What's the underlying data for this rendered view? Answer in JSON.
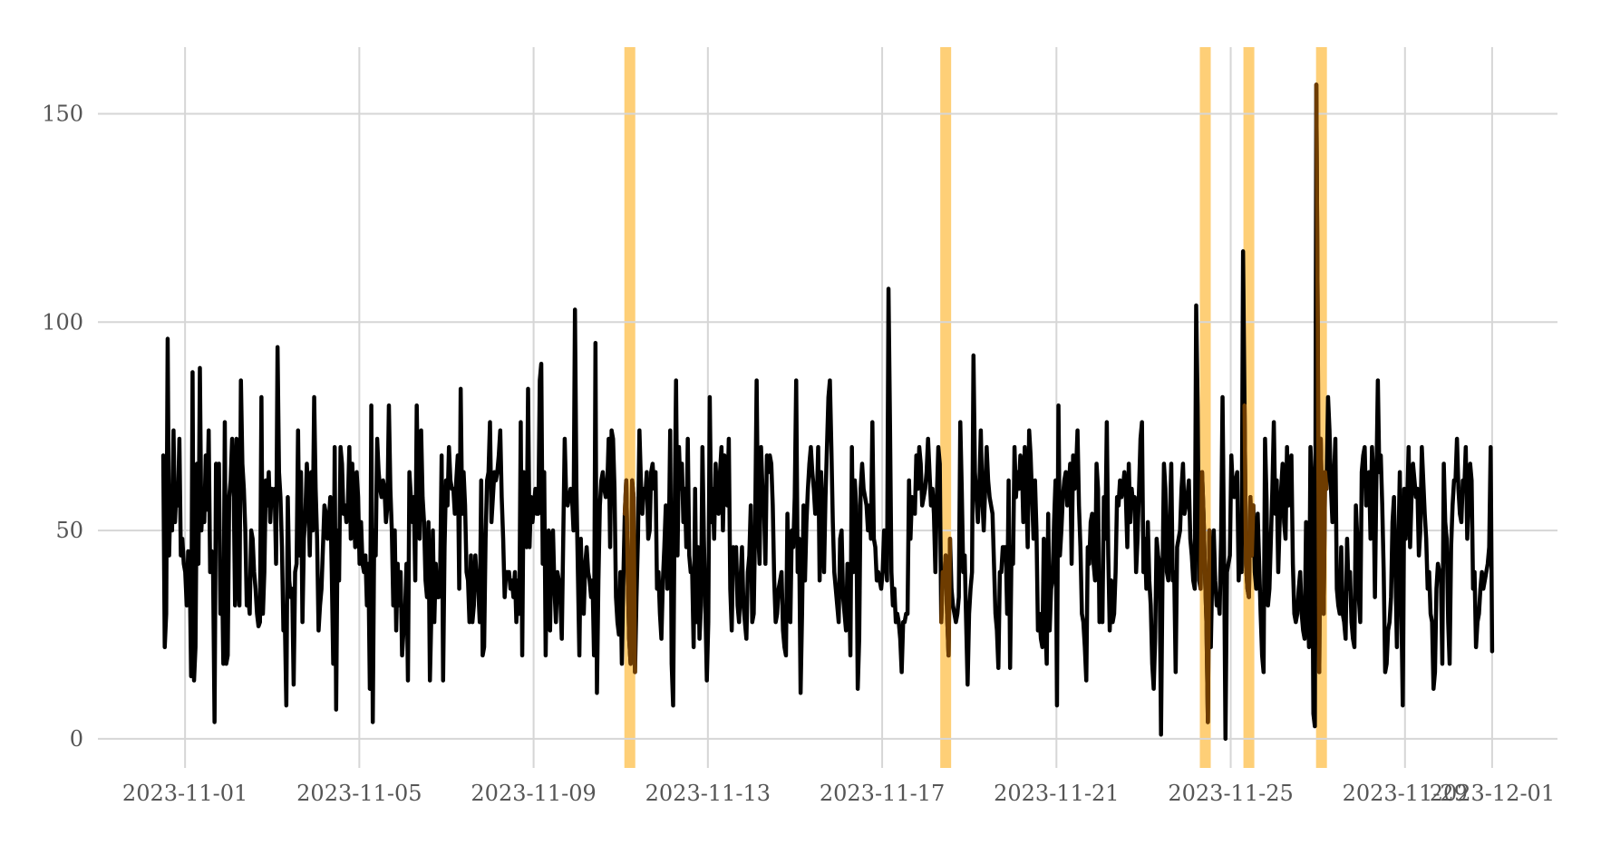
{
  "chart_data": {
    "type": "line",
    "title": "",
    "xlabel": "",
    "ylabel": "",
    "x_axis": {
      "type": "date",
      "start": "2023-10-31T12:00",
      "end": "2023-12-01T00:00",
      "range": [
        "2023-10-30T00:00",
        "2023-12-02T12:00"
      ],
      "ticks": [
        "2023-11-01",
        "2023-11-05",
        "2023-11-09",
        "2023-11-13",
        "2023-11-17",
        "2023-11-21",
        "2023-11-25",
        "2023-11-29",
        "2023-12-01"
      ]
    },
    "y_axis": {
      "range": [
        -7,
        166
      ],
      "ticks": [
        0,
        50,
        100,
        150
      ]
    },
    "grid": true,
    "line_color": "#000000",
    "highlight_color": "#fdbf4a",
    "spike_color": "#7a4300",
    "series": [
      {
        "values": [
          68,
          22,
          30,
          96,
          44,
          60,
          50,
          74,
          52,
          60,
          56,
          72,
          44,
          48,
          42,
          40,
          32,
          45,
          42,
          15,
          88,
          14,
          22,
          66,
          42,
          89,
          50,
          58,
          52,
          68,
          55,
          74,
          40,
          45,
          40,
          4,
          66,
          55,
          66,
          30,
          42,
          18,
          76,
          18,
          20,
          58,
          62,
          72,
          62,
          32,
          72,
          40,
          32,
          86,
          66,
          60,
          50,
          32,
          34,
          30,
          50,
          48,
          40,
          36,
          30,
          27,
          28,
          82,
          30,
          40,
          62,
          56,
          64,
          52,
          60,
          58,
          60,
          42,
          94,
          64,
          58,
          46,
          26,
          28,
          8,
          58,
          38,
          34,
          36,
          13,
          40,
          42,
          74,
          44,
          64,
          28,
          48,
          54,
          66,
          58,
          44,
          64,
          50,
          82,
          60,
          48,
          26,
          32,
          36,
          46,
          56,
          54,
          48,
          52,
          58,
          40,
          18,
          70,
          7,
          50,
          38,
          70,
          66,
          54,
          56,
          52,
          56,
          70,
          48,
          66,
          56,
          46,
          64,
          58,
          42,
          52,
          42,
          40,
          44,
          32,
          42,
          12,
          80,
          4,
          50,
          44,
          72,
          64,
          60,
          58,
          62,
          60,
          52,
          56,
          80,
          60,
          50,
          32,
          50,
          26,
          42,
          32,
          40,
          20,
          26,
          30,
          42,
          14,
          64,
          58,
          52,
          58,
          38,
          80,
          56,
          48,
          74,
          58,
          52,
          38,
          34,
          52,
          14,
          30,
          50,
          28,
          42,
          34,
          34,
          40,
          68,
          14,
          46,
          62,
          56,
          70,
          62,
          60,
          60,
          54,
          62,
          68,
          36,
          84,
          54,
          64,
          56,
          40,
          38,
          28,
          44,
          28,
          32,
          44,
          38,
          36,
          28,
          62,
          20,
          22,
          48,
          62,
          64,
          76,
          52,
          58,
          64,
          62,
          64,
          68,
          74,
          58,
          48,
          34,
          40,
          40,
          40,
          36,
          38,
          34,
          40,
          28,
          38,
          30,
          76,
          20,
          64,
          60,
          46,
          84,
          46,
          58,
          52,
          56,
          60,
          54,
          54,
          86,
          90,
          42,
          64,
          20,
          48,
          50,
          26,
          48,
          50,
          36,
          28,
          40,
          38,
          34,
          24,
          48,
          72,
          58,
          56,
          58,
          60,
          58,
          50,
          103,
          60,
          40,
          20,
          48,
          34,
          30,
          42,
          46,
          40,
          38,
          34,
          38,
          20,
          95,
          11,
          38,
          56,
          62,
          64,
          60,
          58,
          60,
          72,
          46,
          74,
          72,
          60,
          34,
          28,
          25,
          40,
          18,
          38,
          54,
          62,
          40,
          24,
          18,
          62,
          58,
          16,
          34,
          48,
          74,
          62,
          54,
          60,
          58,
          64,
          48,
          50,
          64,
          66,
          60,
          64,
          36,
          40,
          30,
          24,
          38,
          46,
          56,
          36,
          46,
          74,
          18,
          8,
          54,
          86,
          44,
          70,
          60,
          66,
          52,
          60,
          46,
          72,
          44,
          40,
          40,
          22,
          60,
          28,
          46,
          24,
          32,
          70,
          48,
          32,
          14,
          28,
          82,
          52,
          60,
          48,
          66,
          58,
          54,
          64,
          70,
          50,
          68,
          66,
          56,
          72,
          36,
          26,
          46,
          40,
          46,
          32,
          28,
          38,
          46,
          32,
          28,
          24,
          40,
          44,
          56,
          28,
          30,
          52,
          86,
          50,
          42,
          70,
          60,
          56,
          42,
          68,
          64,
          68,
          66,
          56,
          38,
          28,
          30,
          36,
          38,
          40,
          26,
          22,
          20,
          54,
          38,
          28,
          50,
          46,
          58,
          86,
          40,
          48,
          11,
          30,
          56,
          38,
          52,
          60,
          66,
          70,
          64,
          60,
          54,
          56,
          70,
          38,
          64,
          54,
          40,
          58,
          70,
          82,
          86,
          70,
          52,
          40,
          36,
          32,
          28,
          48,
          50,
          34,
          30,
          26,
          42,
          38,
          20,
          70,
          40,
          62,
          56,
          12,
          24,
          60,
          66,
          60,
          58,
          56,
          50,
          56,
          48,
          76,
          48,
          46,
          38,
          40,
          38,
          36,
          40,
          50,
          46,
          38,
          108,
          76,
          40,
          32,
          36,
          28,
          30,
          28,
          24,
          16,
          28,
          28,
          30,
          30,
          62,
          48,
          58,
          56,
          54,
          68,
          60,
          70,
          66,
          56,
          58,
          60,
          64,
          72,
          64,
          56,
          60,
          54,
          40,
          58,
          70,
          66,
          28,
          40,
          38,
          44,
          30,
          20,
          48,
          36,
          32,
          30,
          28,
          30,
          34,
          76,
          60,
          40,
          44,
          28,
          13,
          30,
          36,
          40,
          92,
          64,
          58,
          52,
          60,
          74,
          58,
          50,
          60,
          70,
          62,
          58,
          56,
          54,
          42,
          30,
          26,
          17,
          40,
          40,
          46,
          46,
          46,
          30,
          62,
          17,
          46,
          42,
          70,
          58,
          64,
          60,
          68,
          66,
          52,
          70,
          60,
          46,
          74,
          68,
          58,
          48,
          62,
          50,
          26,
          30,
          24,
          22,
          48,
          28,
          18,
          54,
          26,
          36,
          38,
          52,
          62,
          8,
          80,
          44,
          50,
          58,
          62,
          64,
          56,
          60,
          66,
          42,
          68,
          60,
          64,
          74,
          56,
          46,
          30,
          28,
          22,
          14,
          46,
          42,
          52,
          54,
          42,
          38,
          66,
          60,
          28,
          36,
          28,
          58,
          48,
          76,
          44,
          26,
          38,
          28,
          30,
          40,
          58,
          56,
          62,
          58,
          60,
          64,
          58,
          46,
          66,
          52,
          60,
          56,
          58,
          40,
          48,
          60,
          72,
          76,
          40,
          48,
          36,
          52,
          38,
          32,
          18,
          12,
          24,
          48,
          44,
          42,
          1,
          38,
          66,
          60,
          40,
          38,
          52,
          66,
          38,
          40,
          16,
          46,
          48,
          50,
          60,
          66,
          54,
          56,
          58,
          62,
          48,
          44,
          38,
          36,
          104,
          80,
          38,
          36,
          64,
          54,
          40,
          28,
          4,
          50,
          22,
          40,
          50,
          38,
          32,
          34,
          30,
          48,
          82,
          46,
          0,
          40,
          42,
          44,
          68,
          60,
          58,
          62,
          64,
          38,
          46,
          40,
          117,
          80,
          42,
          36,
          34,
          58,
          44,
          56,
          40,
          36,
          54,
          42,
          30,
          20,
          16,
          72,
          58,
          32,
          36,
          48,
          60,
          76,
          54,
          62,
          40,
          52,
          60,
          66,
          52,
          48,
          70,
          56,
          64,
          68,
          42,
          30,
          28,
          30,
          36,
          40,
          30,
          26,
          24,
          52,
          34,
          22,
          70,
          62,
          6,
          3,
          157,
          98,
          16,
          72,
          54,
          30,
          64,
          60,
          82,
          74,
          60,
          52,
          62,
          72,
          36,
          32,
          30,
          46,
          30,
          28,
          24,
          48,
          36,
          40,
          28,
          24,
          22,
          56,
          48,
          34,
          28,
          64,
          68,
          70,
          56,
          60,
          64,
          48,
          70,
          62,
          34,
          62,
          86,
          64,
          68,
          56,
          40,
          16,
          18,
          26,
          28,
          34,
          52,
          58,
          40,
          22,
          46,
          64,
          32,
          8,
          60,
          48,
          56,
          70,
          46,
          58,
          66,
          62,
          58,
          60,
          44,
          50,
          70,
          62,
          54,
          48,
          36,
          40,
          30,
          28,
          12,
          16,
          36,
          42,
          40,
          40,
          18,
          66,
          52,
          48,
          28,
          18,
          46,
          56,
          62,
          62,
          72,
          60,
          54,
          52,
          62,
          60,
          70,
          48,
          58,
          66,
          62,
          36,
          40,
          22,
          28,
          30,
          36,
          40,
          36,
          38,
          40,
          42,
          46,
          70,
          21
        ]
      }
    ],
    "highlight_regions": [
      [
        "2023-11-11T02:00",
        "2023-11-11T08:00"
      ],
      [
        "2023-11-18T08:00",
        "2023-11-18T14:00"
      ],
      [
        "2023-11-24T07:00",
        "2023-11-24T13:00"
      ],
      [
        "2023-11-25T07:00",
        "2023-11-25T13:00"
      ],
      [
        "2023-11-26T23:00",
        "2023-11-27T05:00"
      ]
    ]
  }
}
